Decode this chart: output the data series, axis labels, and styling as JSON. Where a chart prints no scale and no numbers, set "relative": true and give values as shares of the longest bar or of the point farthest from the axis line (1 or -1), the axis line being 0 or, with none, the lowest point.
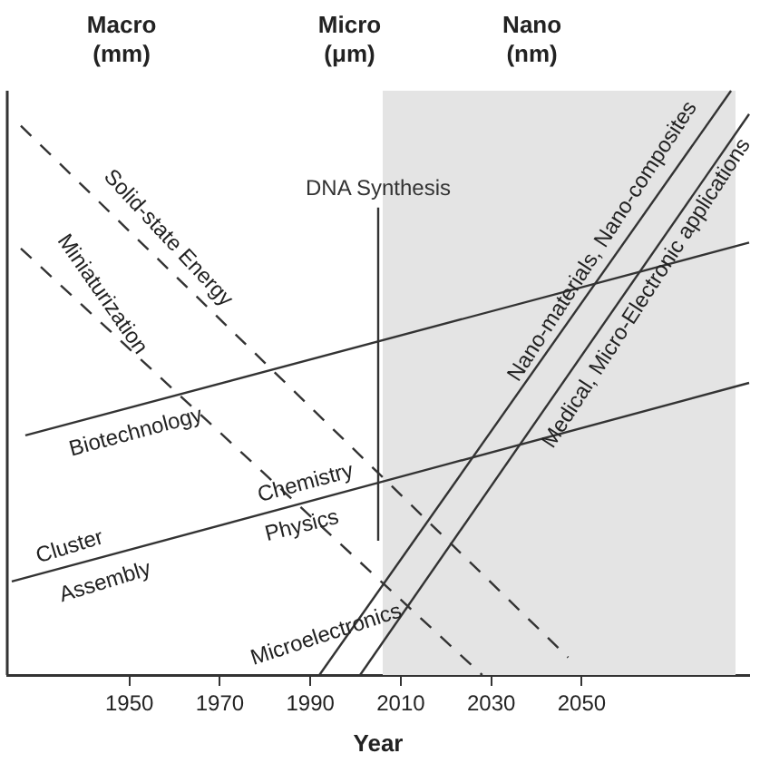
{
  "chart_data": {
    "type": "line",
    "relative": true,
    "xlabel": "Year",
    "xlim": [
      1923,
      2087
    ],
    "xticks": [
      1950,
      1970,
      1990,
      2010,
      2030,
      2050
    ],
    "grid": false,
    "legend": false,
    "marker": "none",
    "series": [
      {
        "color": "#333333",
        "line_style": "dashed",
        "x": [
          1926,
          2047
        ],
        "values": [
          0.94,
          0.03
        ]
      },
      {
        "color": "#333333",
        "line_style": "dashed",
        "x": [
          1926,
          2028
        ],
        "values": [
          0.73,
          0
        ]
      },
      {
        "color": "#333333",
        "line_style": "solid",
        "x": [
          1927,
          2087
        ],
        "values": [
          0.41,
          0.74
        ]
      },
      {
        "color": "#333333",
        "line_style": "solid",
        "x": [
          1924,
          2087
        ],
        "values": [
          0.16,
          0.5
        ]
      },
      {
        "color": "#333333",
        "line_style": "solid",
        "x": [
          1992,
          2083
        ],
        "values": [
          0,
          1
        ]
      },
      {
        "color": "#333333",
        "line_style": "solid",
        "x": [
          2001,
          2087
        ],
        "values": [
          0,
          0.96
        ]
      }
    ],
    "ref_lines": [
      {
        "axis": "x",
        "value": 2005,
        "label": "DNA Synthesis",
        "color": "#333333"
      }
    ],
    "bands": [
      {
        "axis": "x",
        "from": 2006,
        "to": 2084,
        "color": "#e4e4e4"
      }
    ],
    "annotations": [
      "Macro\n(mm)",
      "Micro\n(μm)",
      "Nano\n(nm)",
      {
        "text": "Solid-state Energy",
        "x": 1955,
        "y": 0.722
      },
      {
        "text": "Miniaturization",
        "x": 1940,
        "y": 0.63
      },
      {
        "text": "Biotechnology",
        "x": 1950,
        "y": 0.457
      },
      {
        "text": "Chemistry",
        "x": 1990,
        "y": 0.298
      },
      {
        "text": "Physics",
        "x": 1987,
        "y": 0.291
      },
      {
        "text": "Cluster",
        "x": 1938,
        "y": 0.189
      },
      {
        "text": "Assembly",
        "x": 1943,
        "y": 0.2
      },
      {
        "text": "Microelectronics",
        "x": 1995,
        "y": 0.033
      },
      {
        "text": "Nano-materials, Nano-composites",
        "x": 2058,
        "y": 0.725
      },
      {
        "text": "Medical, Micro-Electronic applications",
        "x": 2061,
        "y": 0.67
      }
    ]
  }
}
